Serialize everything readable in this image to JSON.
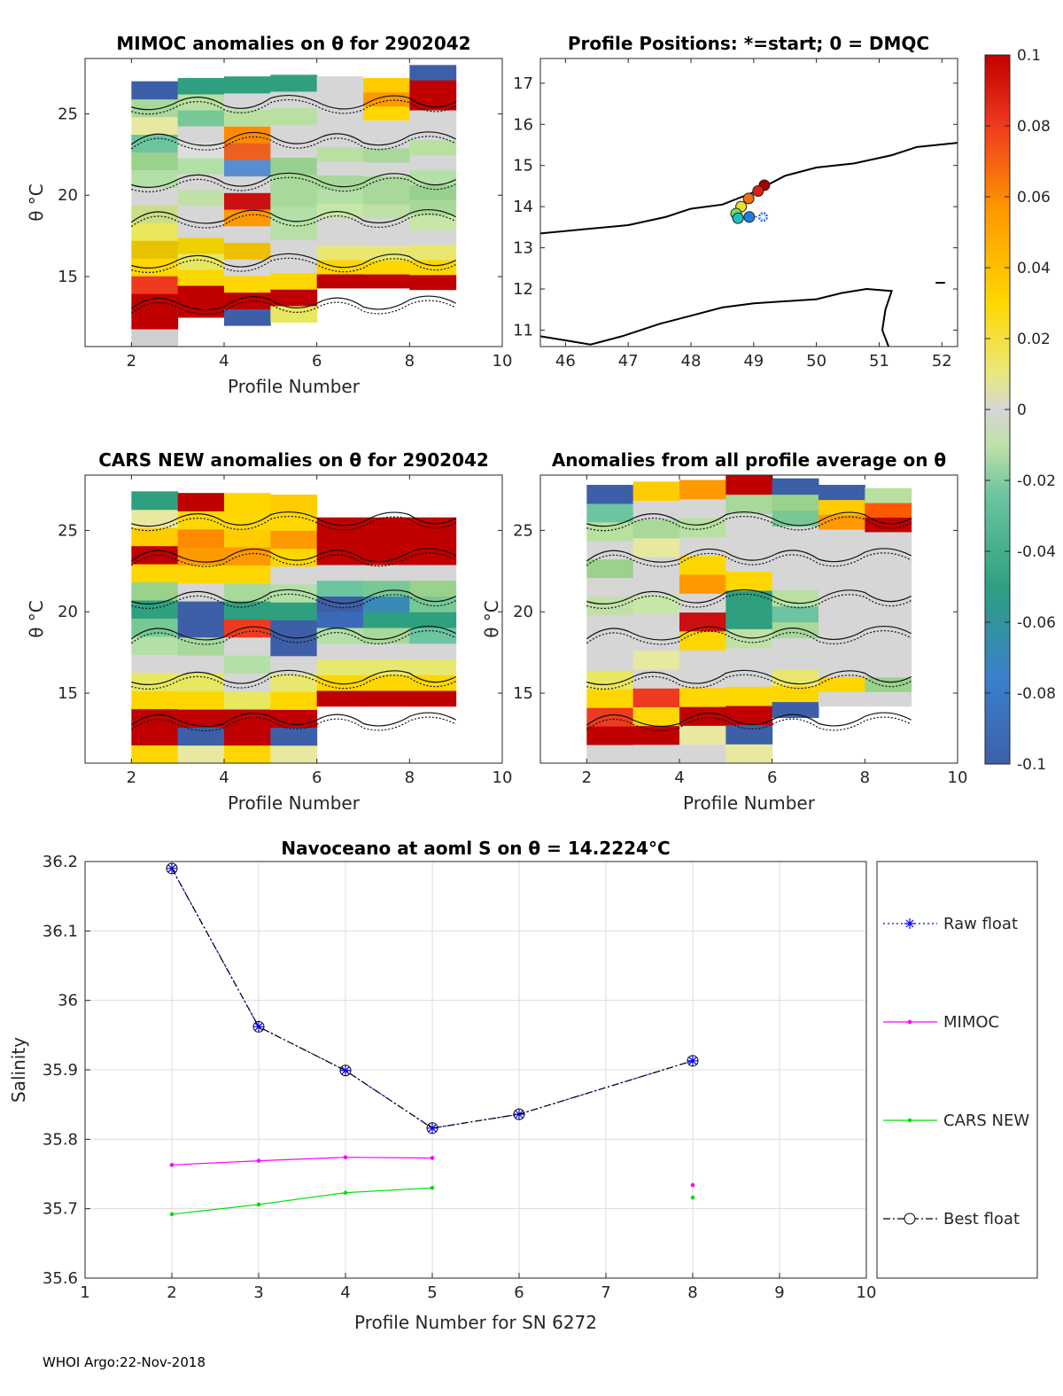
{
  "footer": "WHOI Argo:22-Nov-2018",
  "colorbar": {
    "ticks": [
      "0.1",
      "0.08",
      "0.06",
      "0.04",
      "0.02",
      "0",
      "-0.02",
      "-0.04",
      "-0.06",
      "-0.08",
      "-0.1"
    ],
    "range": [
      -0.1,
      0.1
    ]
  },
  "chart_data": [
    {
      "id": "mimoc",
      "type": "heatmap",
      "title": "MIMOC anomalies on θ  for 2902042",
      "xlabel": "Profile Number",
      "ylabel": "θ °C",
      "xlim": [
        1,
        10
      ],
      "ylim": [
        10.7,
        28.4
      ],
      "xticks": [
        "2",
        "4",
        "6",
        "8",
        "10"
      ],
      "yticks": [
        "15",
        "20",
        "25"
      ],
      "columns": [
        {
          "profile": 2,
          "theta_range": [
            10.5,
            27.0
          ],
          "colors": [
            "#cfcfcf",
            "#c00000",
            "#c00000",
            "#ee3b1f",
            "#ffd700",
            "#e6c200",
            "#e8e85a",
            "#ccdd88",
            "#d6d6d6",
            "#b2e0a6",
            "#9ad18b",
            "#6cc5a0",
            "#e8e8a0",
            "#a8d89a",
            "#3d5fa8"
          ]
        },
        {
          "profile": 3,
          "theta_range": [
            12.5,
            27.2
          ],
          "colors": [
            "#c00000",
            "#c00000",
            "#ffd700",
            "#e8e860",
            "#f0d000",
            "#d6d6d6",
            "#d6d6d6",
            "#c0e0a8",
            "#d6d6d6",
            "#b2e0a6",
            "#ddd",
            "#d6d6d6",
            "#78c896",
            "#b8e0a0",
            "#2ea080"
          ]
        },
        {
          "profile": 4,
          "theta_range": [
            12.0,
            27.3
          ],
          "colors": [
            "#3d5fa8",
            "#c00000",
            "#ffd700",
            "#d6d6d6",
            "#f0c000",
            "#d6d6d6",
            "#ff9900",
            "#cc1010",
            "#d6d6d6",
            "#5a8dd0",
            "#ee6020",
            "#ff8a00",
            "#b8e0a0",
            "#d6d6d6",
            "#2ea080"
          ]
        },
        {
          "profile": 5,
          "theta_range": [
            12.2,
            27.4
          ],
          "colors": [
            "#e8e860",
            "#c00000",
            "#ffd700",
            "#d6d6d6",
            "#d6d6d6",
            "#b8e0a6",
            "#b2e0a6",
            "#a8d89a",
            "#a8d89a",
            "#98d090",
            "#d6d6d6",
            "#d6d6d6",
            "#b8e0a0",
            "#d6d6d6",
            "#2ea080"
          ]
        },
        {
          "profile": 6,
          "theta_range": [
            14.3,
            27.3
          ],
          "colors": [
            "#c00000",
            "#ffd700",
            "#e8e870",
            "#d6d6d6",
            "#d6d6d6",
            "#c8e6a8",
            "#b2e0a6",
            "#a8d89a",
            "#d6d6d6",
            "#b8e0a0",
            "#d6d6d6",
            "#d6d6d6",
            "#d6d6d6",
            "#d6d6d6",
            "#d6d6d6"
          ]
        },
        {
          "profile": 7,
          "theta_range": [
            14.3,
            27.2
          ],
          "colors": [
            "#c00000",
            "#ffd700",
            "#e8e870",
            "#d6d6d6",
            "#d6d6d6",
            "#c0e0a8",
            "#a8d89a",
            "#a8d89a",
            "#d6d6d6",
            "#a8d89a",
            "#d6d6d6",
            "#d6d6d6",
            "#ffd700",
            "#ff9900",
            "#ffcc00"
          ]
        },
        {
          "profile": 8,
          "theta_range": [
            14.2,
            28.0
          ],
          "colors": [
            "#c00000",
            "#ffd700",
            "#e8e870",
            "#d6d6d6",
            "#c8e6a8",
            "#a8d89a",
            "#98d090",
            "#b2e0a6",
            "#d6d6d6",
            "#b8e0a0",
            "#d6d6d6",
            "#d6d6d6",
            "#c00000",
            "#c00000",
            "#3d5fa8"
          ]
        }
      ]
    },
    {
      "id": "positions",
      "type": "scatter",
      "title": "Profile Positions: *=start; 0 = DMQC",
      "xlim": [
        45.6,
        52.25
      ],
      "ylim": [
        10.6,
        17.6
      ],
      "xticks": [
        "46",
        "47",
        "48",
        "49",
        "50",
        "51",
        "52"
      ],
      "yticks": [
        "11",
        "12",
        "13",
        "14",
        "15",
        "16",
        "17"
      ],
      "points": [
        {
          "profile": 2,
          "lon": 49.15,
          "lat": 13.75,
          "color": "#1e66ff",
          "marker": "star"
        },
        {
          "profile": 3,
          "lon": 48.93,
          "lat": 13.75,
          "color": "#1f7fe0"
        },
        {
          "profile": 4,
          "lon": 48.75,
          "lat": 13.72,
          "color": "#19c0c0"
        },
        {
          "profile": 5,
          "lon": 48.72,
          "lat": 13.83,
          "color": "#77e06a"
        },
        {
          "profile": 6,
          "lon": 48.8,
          "lat": 14.0,
          "color": "#f0e020"
        },
        {
          "profile": 7,
          "lon": 48.92,
          "lat": 14.2,
          "color": "#f07010"
        },
        {
          "profile": 8,
          "lon": 49.07,
          "lat": 14.38,
          "color": "#e02010"
        },
        {
          "profile": 9,
          "lon": 49.17,
          "lat": 14.52,
          "color": "#a00000"
        }
      ],
      "coastlines": [
        [
          [
            45.6,
            13.35
          ],
          [
            46.3,
            13.45
          ],
          [
            47.0,
            13.55
          ],
          [
            47.6,
            13.75
          ],
          [
            48.0,
            13.95
          ],
          [
            48.5,
            14.05
          ],
          [
            49.0,
            14.35
          ],
          [
            49.5,
            14.75
          ],
          [
            50.0,
            14.95
          ],
          [
            50.6,
            15.05
          ],
          [
            51.2,
            15.25
          ],
          [
            51.6,
            15.45
          ],
          [
            52.25,
            15.55
          ]
        ],
        [
          [
            45.6,
            10.85
          ],
          [
            46.0,
            10.75
          ],
          [
            46.4,
            10.65
          ],
          [
            46.9,
            10.85
          ],
          [
            47.5,
            11.15
          ],
          [
            48.0,
            11.35
          ],
          [
            48.5,
            11.55
          ],
          [
            49.0,
            11.65
          ],
          [
            49.5,
            11.7
          ],
          [
            50.0,
            11.75
          ],
          [
            50.4,
            11.9
          ],
          [
            50.8,
            12.0
          ],
          [
            51.2,
            11.95
          ],
          [
            51.1,
            11.5
          ],
          [
            51.05,
            11.0
          ],
          [
            51.15,
            10.6
          ]
        ]
      ]
    },
    {
      "id": "cars",
      "type": "heatmap",
      "title": "CARS NEW anomalies on θ for 2902042",
      "xlabel": "Profile Number",
      "ylabel": "θ °C",
      "xlim": [
        1,
        10
      ],
      "ylim": [
        10.7,
        28.4
      ],
      "xticks": [
        "2",
        "4",
        "6",
        "8",
        "10"
      ],
      "yticks": [
        "15",
        "20",
        "25"
      ],
      "columns": [
        {
          "profile": 2,
          "theta_range": [
            10.7,
            27.4
          ],
          "colors": [
            "#ffd700",
            "#c00000",
            "#c00000",
            "#ffd700",
            "#e8e860",
            "#d6d6d6",
            "#b2e0a6",
            "#78c896",
            "#2ea080",
            "#9ad18b",
            "#ffd700",
            "#c00000",
            "#ffcc00",
            "#e8e8a0",
            "#2ea080"
          ]
        },
        {
          "profile": 3,
          "theta_range": [
            10.7,
            27.3
          ],
          "colors": [
            "#e8e8a0",
            "#3d5fa8",
            "#c00000",
            "#ffd700",
            "#e8e860",
            "#d6d6d6",
            "#a8d89a",
            "#3d5fa8",
            "#3d5fa8",
            "#d6d6d6",
            "#ffd700",
            "#ff9900",
            "#ff8a00",
            "#ffd700",
            "#c00000"
          ]
        },
        {
          "profile": 4,
          "theta_range": [
            10.7,
            27.3
          ],
          "colors": [
            "#ffd700",
            "#c00000",
            "#c00000",
            "#e8e860",
            "#d6d6d6",
            "#b2e0a6",
            "#d6d6d6",
            "#ee3b1f",
            "#2ea080",
            "#a8d89a",
            "#ffd700",
            "#ff9900",
            "#ffcc00",
            "#ffd700",
            "#ffd700"
          ]
        },
        {
          "profile": 5,
          "theta_range": [
            10.7,
            27.2
          ],
          "colors": [
            "#e8e8a0",
            "#3d5fa8",
            "#c00000",
            "#ffd700",
            "#e8e870",
            "#d6d6d6",
            "#3d5fa8",
            "#3d5fa8",
            "#2ea080",
            "#b2e0a6",
            "#d6d6d6",
            "#ffd700",
            "#ff9900",
            "#ffd700",
            "#ffcc00"
          ]
        },
        {
          "profile": 6,
          "theta_range": [
            14.2,
            25.8
          ],
          "colors": [
            "#c00000",
            "#ffd700",
            "#e8e870",
            "#d6d6d6",
            "#b2e0a6",
            "#3a6ab8",
            "#3d5fa8",
            "#6cc5a0",
            "#d6d6d6",
            "#c00000",
            "#c00000",
            "#c00000"
          ]
        },
        {
          "profile": 7,
          "theta_range": [
            14.2,
            25.8
          ],
          "colors": [
            "#c00000",
            "#ffd700",
            "#e8e870",
            "#d6d6d6",
            "#a8d89a",
            "#2ea080",
            "#3a8ab8",
            "#78c896",
            "#d6d6d6",
            "#c00000",
            "#c00000",
            "#c00000"
          ]
        },
        {
          "profile": 8,
          "theta_range": [
            14.2,
            25.8
          ],
          "colors": [
            "#c00000",
            "#ffd700",
            "#e8e870",
            "#d6d6d6",
            "#6cc5a0",
            "#2ea080",
            "#78c896",
            "#9ad18b",
            "#d6d6d6",
            "#c00000",
            "#c00000",
            "#c00000"
          ]
        }
      ]
    },
    {
      "id": "allavg",
      "type": "heatmap",
      "title": "Anomalies from all profile average on θ",
      "xlabel": "Profile Number",
      "ylabel": "θ °C",
      "xlim": [
        1,
        10
      ],
      "ylim": [
        10.7,
        28.4
      ],
      "xticks": [
        "2",
        "4",
        "6",
        "8",
        "10"
      ],
      "yticks": [
        "15",
        "20",
        "25"
      ],
      "columns": [
        {
          "profile": 2,
          "theta_range": [
            10.7,
            27.8
          ],
          "colors": [
            "#d6d6d6",
            "#c00000",
            "#ee3b1f",
            "#ffd700",
            "#e8e860",
            "#d6d6d6",
            "#d6d6d6",
            "#d6d6d6",
            "#c0e0a8",
            "#d6d6d6",
            "#9ad18b",
            "#d6d6d6",
            "#b8e0a0",
            "#6cc5a0",
            "#3d5fa8"
          ]
        },
        {
          "profile": 3,
          "theta_range": [
            10.7,
            28.0
          ],
          "colors": [
            "#d6d6d6",
            "#c00000",
            "#ffd700",
            "#ee3b1f",
            "#d6d6d6",
            "#e8e8a0",
            "#d6d6d6",
            "#d6d6d6",
            "#c8e6a8",
            "#d6d6d6",
            "#d6d6d6",
            "#e8e8a0",
            "#a8d89a",
            "#d6d6d6",
            "#ffcc00"
          ]
        },
        {
          "profile": 4,
          "theta_range": [
            10.7,
            28.1
          ],
          "colors": [
            "#d6d6d6",
            "#e8e8a0",
            "#c00000",
            "#ffd700",
            "#d6d6d6",
            "#d6d6d6",
            "#ffd700",
            "#cc1010",
            "#d6d6d6",
            "#ff9900",
            "#ffd700",
            "#d6d6d6",
            "#b8e0a0",
            "#d6d6d6",
            "#ff9900"
          ]
        },
        {
          "profile": 5,
          "theta_range": [
            10.7,
            28.4
          ],
          "colors": [
            "#e8e8a0",
            "#3d5fa8",
            "#c00000",
            "#ffd700",
            "#d6d6d6",
            "#d6d6d6",
            "#c0e0a8",
            "#2ea080",
            "#2ea080",
            "#ffd700",
            "#d6d6d6",
            "#d6d6d6",
            "#d6d6d6",
            "#a8d89a",
            "#c00000"
          ]
        },
        {
          "profile": 6,
          "theta_range": [
            13.5,
            28.2
          ],
          "colors": [
            "#3d5fa8",
            "#ffd700",
            "#e8e870",
            "#d6d6d6",
            "#d6d6d6",
            "#a8d89a",
            "#6cc5a0",
            "#b8e0a0",
            "#d6d6d6",
            "#d6d6d6",
            "#d6d6d6",
            "#d6d6d6",
            "#78c896",
            "#9ad18b",
            "#3d5fa8"
          ]
        },
        {
          "profile": 7,
          "theta_range": [
            14.2,
            27.8
          ],
          "colors": [
            "#d6d6d6",
            "#ffd700",
            "#d6d6d6",
            "#d6d6d6",
            "#d6d6d6",
            "#d6d6d6",
            "#d6d6d6",
            "#d6d6d6",
            "#d6d6d6",
            "#d6d6d6",
            "#d6d6d6",
            "#d6d6d6",
            "#ff9900",
            "#ffcc00",
            "#3d5fa8"
          ]
        },
        {
          "profile": 8,
          "theta_range": [
            14.2,
            27.6
          ],
          "colors": [
            "#d6d6d6",
            "#9ad18b",
            "#d6d6d6",
            "#d6d6d6",
            "#d6d6d6",
            "#d6d6d6",
            "#d6d6d6",
            "#d6d6d6",
            "#d6d6d6",
            "#d6d6d6",
            "#d6d6d6",
            "#d6d6d6",
            "#c00000",
            "#ff5a00",
            "#b8e0a0"
          ]
        }
      ]
    },
    {
      "id": "salinity",
      "type": "line",
      "title": "Navoceano at aoml S on θ = 14.2224°C",
      "xlabel": "Profile Number for SN 6272",
      "ylabel": "Salinity",
      "xlim": [
        1,
        10
      ],
      "ylim": [
        35.6,
        36.2
      ],
      "xticks": [
        "1",
        "2",
        "3",
        "4",
        "5",
        "6",
        "7",
        "8",
        "9",
        "10"
      ],
      "yticks": [
        "35.6",
        "35.7",
        "35.8",
        "35.9",
        "36",
        "36.1",
        "36.2"
      ],
      "series": [
        {
          "name": "Raw float",
          "color": "#0000ff",
          "style": "dotted",
          "marker": "star",
          "points": [
            [
              2,
              36.19
            ],
            [
              3,
              35.962
            ],
            [
              4,
              35.899
            ],
            [
              5,
              35.816
            ],
            [
              6,
              35.836
            ],
            [
              8,
              35.913
            ]
          ]
        },
        {
          "name": "MIMOC",
          "color": "#ff00ff",
          "style": "solid",
          "marker": "dot",
          "points": [
            [
              2,
              35.763
            ],
            [
              3,
              35.769
            ],
            [
              4,
              35.774
            ],
            [
              5,
              35.773
            ]
          ],
          "extra": [
            [
              8,
              35.734
            ]
          ]
        },
        {
          "name": "CARS NEW",
          "color": "#00e000",
          "style": "solid",
          "marker": "dot",
          "points": [
            [
              2,
              35.692
            ],
            [
              3,
              35.706
            ],
            [
              4,
              35.723
            ],
            [
              5,
              35.73
            ]
          ],
          "extra": [
            [
              8,
              35.716
            ]
          ]
        },
        {
          "name": "Best float",
          "color": "#000000",
          "style": "dashdot",
          "marker": "circle",
          "points": [
            [
              2,
              36.19
            ],
            [
              3,
              35.962
            ],
            [
              4,
              35.899
            ],
            [
              5,
              35.816
            ],
            [
              6,
              35.836
            ],
            [
              8,
              35.913
            ]
          ]
        }
      ]
    }
  ]
}
